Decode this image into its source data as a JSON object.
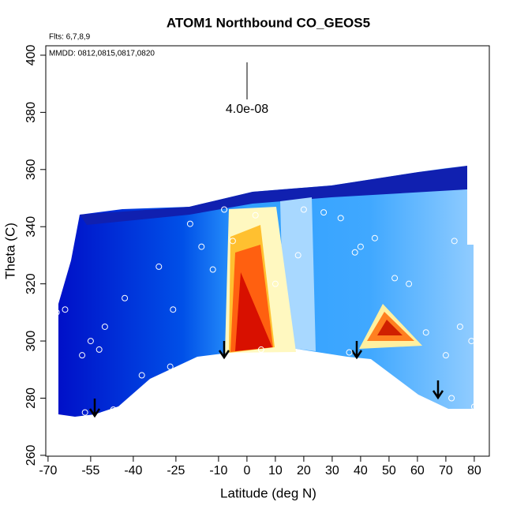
{
  "chart_data": {
    "type": "curtain",
    "title": "ATOM1 Northbound CO_GEOS5",
    "flights_note": "Flts: 6,7,8,9",
    "dates_note": "MMDD: 0812,0815,0817,0820",
    "scale_label": "4.0e-08",
    "xlabel": "Latitude (deg N)",
    "ylabel": "Theta (C)",
    "xlim": [
      -70.8,
      85.3
    ],
    "ylim": [
      259.7,
      403.3
    ],
    "xticks": [
      -70,
      -55,
      -40,
      -25,
      -10,
      0,
      10,
      20,
      30,
      40,
      50,
      60,
      70,
      80
    ],
    "yticks": [
      260,
      280,
      300,
      320,
      340,
      360,
      380,
      400
    ],
    "points": {
      "x": [
        -68,
        -67,
        -64,
        -58,
        -55,
        -52,
        -50,
        -43,
        -37,
        -31,
        -27,
        -20,
        -16,
        -12,
        -8,
        -5,
        3,
        5,
        10,
        18,
        20,
        27,
        33,
        36,
        38,
        40,
        45,
        52,
        57,
        63,
        70,
        73,
        75,
        79,
        80,
        72,
        -57,
        -47,
        -26,
        -6
      ],
      "y": [
        290,
        310,
        311,
        295,
        300,
        297,
        305,
        315,
        288,
        326,
        291,
        341,
        333,
        325,
        346,
        335,
        344,
        297,
        320,
        330,
        346,
        345,
        343,
        296,
        331,
        333,
        336,
        322,
        320,
        303,
        295,
        335,
        305,
        300,
        277,
        280,
        275,
        276,
        311,
        292
      ]
    }
  }
}
